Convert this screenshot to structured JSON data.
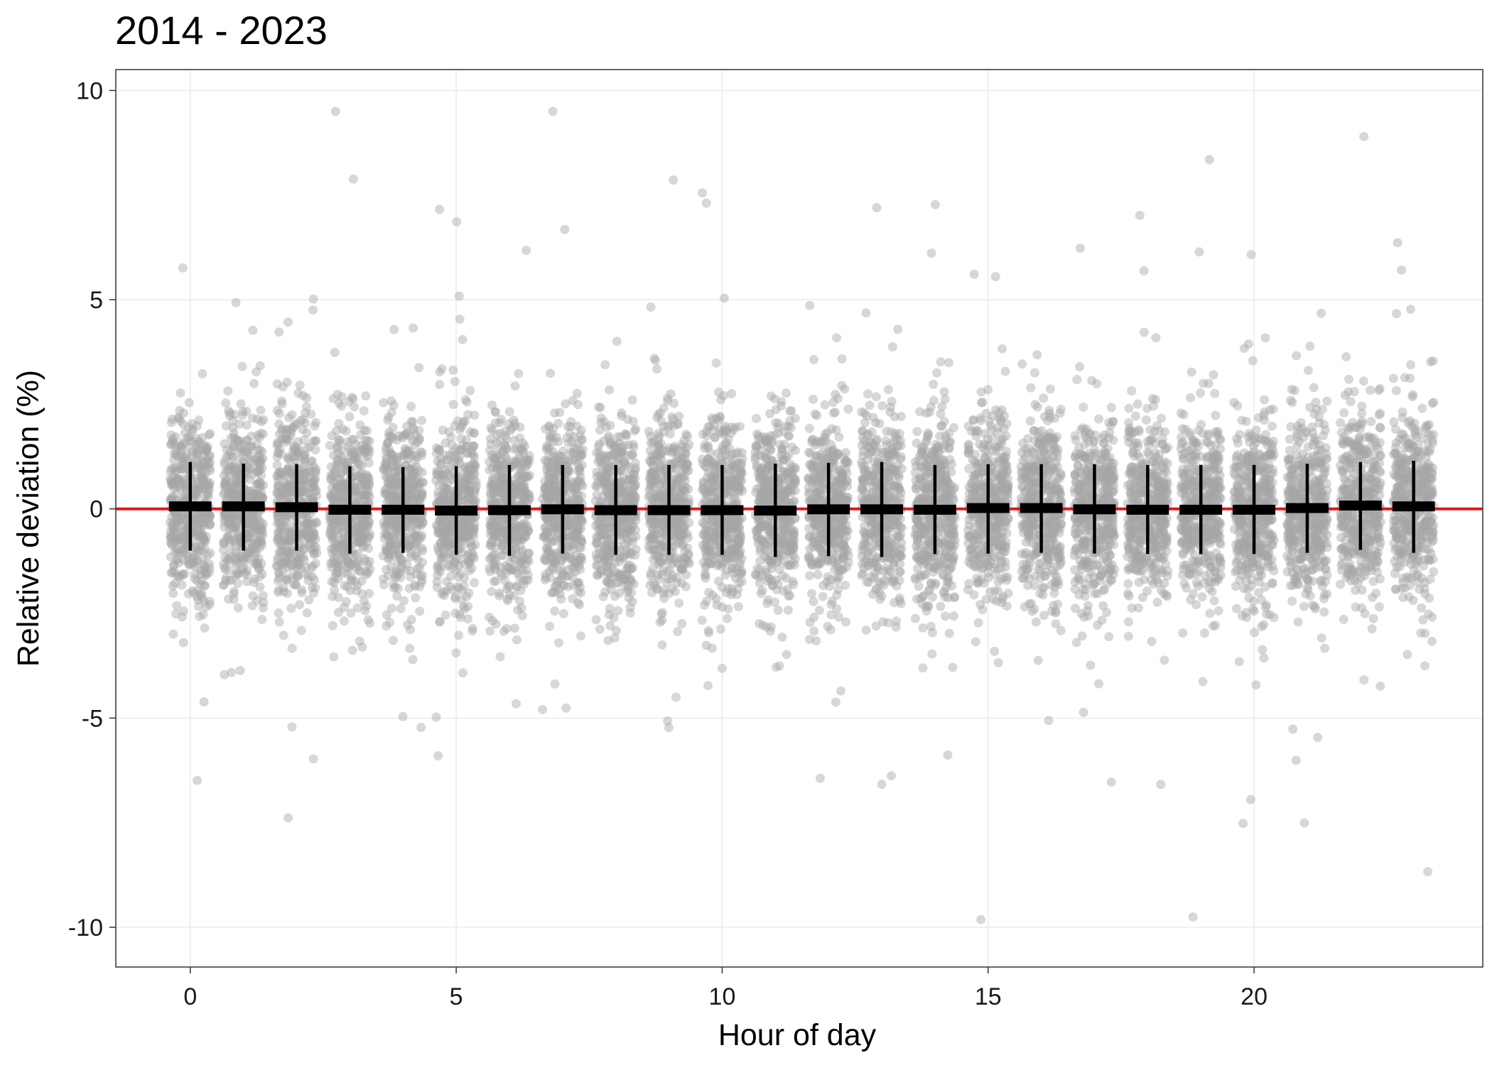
{
  "chart_data": {
    "type": "scatter",
    "title": "2014 - 2023",
    "xlabel": "Hour of day",
    "ylabel": "Relative deviation (%)",
    "xlim": [
      -1.4,
      24.3
    ],
    "ylim": [
      -10.95,
      10.5
    ],
    "xticks": [
      0,
      5,
      10,
      15,
      20
    ],
    "xtick_labels": [
      "0",
      "5",
      "10",
      "15",
      "20"
    ],
    "yticks": [
      10,
      5,
      0,
      -5,
      -10
    ],
    "ytick_labels": [
      "10",
      "5",
      "0",
      "-5",
      "-10"
    ],
    "grid": true,
    "legend": "none",
    "reference_line": {
      "y": 0,
      "color": "#e8141a"
    },
    "colors": {
      "points": "#a6a6a6",
      "summary": "#000000",
      "grid": "#ebebeb"
    },
    "categories": [
      0,
      1,
      2,
      3,
      4,
      5,
      6,
      7,
      8,
      9,
      10,
      11,
      12,
      13,
      14,
      15,
      16,
      17,
      18,
      19,
      20,
      21,
      22,
      23
    ],
    "series": [
      {
        "kind": "mean",
        "values": [
          0.06,
          0.06,
          0.04,
          -0.02,
          -0.02,
          -0.04,
          -0.03,
          -0.01,
          -0.03,
          -0.03,
          -0.03,
          -0.04,
          -0.01,
          -0.01,
          -0.02,
          0.02,
          0.02,
          -0.01,
          -0.02,
          -0.02,
          -0.02,
          0.02,
          0.08,
          0.06
        ]
      },
      {
        "kind": "sd_low",
        "values": [
          -1.0,
          -1.0,
          -1.0,
          -1.07,
          -1.05,
          -1.1,
          -1.12,
          -1.07,
          -1.1,
          -1.1,
          -1.1,
          -1.15,
          -1.13,
          -1.15,
          -1.08,
          -1.07,
          -1.05,
          -1.07,
          -1.08,
          -1.08,
          -1.08,
          -1.05,
          -0.98,
          -1.05
        ]
      },
      {
        "kind": "sd_high",
        "values": [
          1.12,
          1.08,
          1.07,
          1.02,
          1.0,
          1.02,
          1.05,
          1.05,
          1.05,
          1.05,
          1.05,
          1.08,
          1.1,
          1.12,
          1.05,
          1.07,
          1.07,
          1.07,
          1.05,
          1.05,
          1.05,
          1.08,
          1.12,
          1.15
        ]
      }
    ],
    "points": {
      "kind": "jittered raw observations",
      "per_hour": 450,
      "sd": 1.07,
      "jitter_half_width": 0.38
    }
  }
}
